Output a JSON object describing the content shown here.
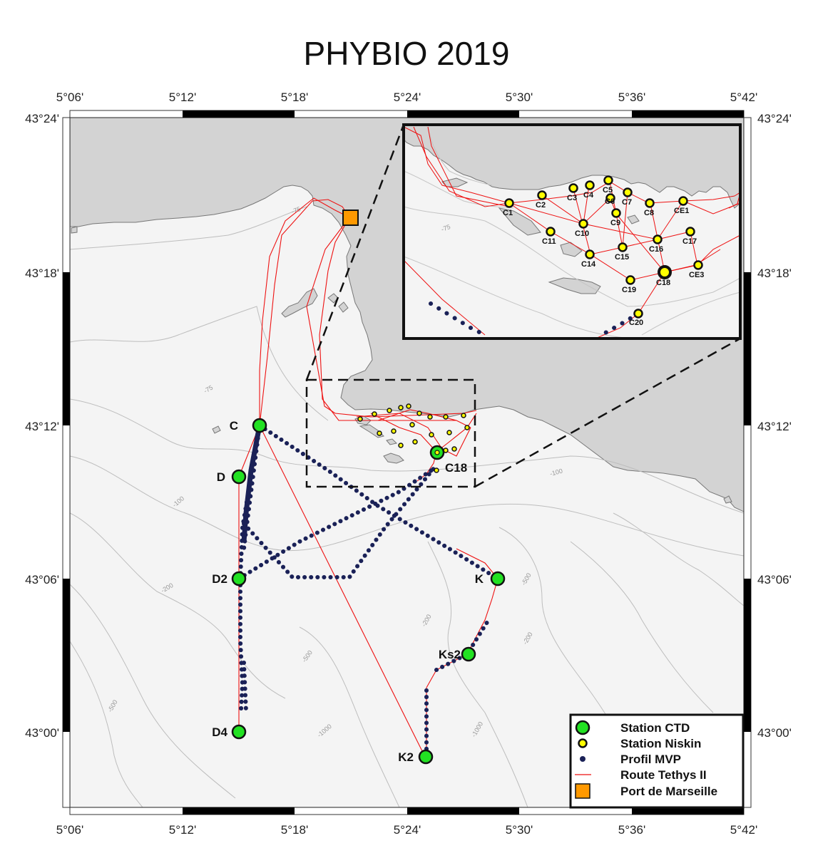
{
  "title": "PHYBIO 2019",
  "axes": {
    "lon_ticks": [
      "5°06'",
      "5°12'",
      "5°18'",
      "5°24'",
      "5°30'",
      "5°36'",
      "5°42'"
    ],
    "lat_ticks": [
      "43°24'",
      "43°18'",
      "43°12'",
      "43°06'",
      "43°00'"
    ]
  },
  "stations_ctd": [
    {
      "name": "C"
    },
    {
      "name": "D"
    },
    {
      "name": "D2"
    },
    {
      "name": "D4"
    },
    {
      "name": "K"
    },
    {
      "name": "Ks2"
    },
    {
      "name": "K2"
    },
    {
      "name": "C18"
    }
  ],
  "stations_niskin": [
    "C1",
    "C2",
    "C3",
    "C4",
    "C5",
    "C6",
    "C7",
    "C8",
    "CE1",
    "C9",
    "C10",
    "C11",
    "C17",
    "C14",
    "C15",
    "C16",
    "C18",
    "CE3",
    "C19",
    "C20"
  ],
  "depth_labels": [
    "-75",
    "-75",
    "-100",
    "-100",
    "-200",
    "-200",
    "-500",
    "-500",
    "-500",
    "-1000",
    "-1000",
    "-200"
  ],
  "legend": {
    "items": [
      {
        "label": "Station CTD",
        "symbol": "green-circle"
      },
      {
        "label": "Station Niskin",
        "symbol": "yellow-circle"
      },
      {
        "label": "Profil MVP",
        "symbol": "navy-dot"
      },
      {
        "label": "Route Tethys II",
        "symbol": "red-line"
      },
      {
        "label": "Port de Marseille",
        "symbol": "orange-square"
      }
    ]
  },
  "colors": {
    "land": "#d3d3d3",
    "ctd": "#22e122",
    "niskin": "#ffff00",
    "mvp": "#1a2157",
    "route": "#ee1111",
    "port": "#ff9900"
  }
}
